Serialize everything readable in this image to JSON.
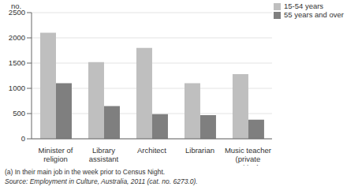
{
  "chart_data": {
    "type": "bar",
    "y_label": "no.",
    "categories": [
      "Minister of religion",
      "Library assistant",
      "Architect",
      "Librarian",
      "Music teacher (private tuition)"
    ],
    "series": [
      {
        "name": "15-54 years",
        "color": "#bfbfbf",
        "values": [
          2100,
          1520,
          1800,
          1100,
          1280
        ]
      },
      {
        "name": "55 years and over",
        "color": "#7f7f7f",
        "values": [
          1100,
          650,
          490,
          470,
          380
        ]
      }
    ],
    "ylim": [
      0,
      2500
    ],
    "yticks": [
      0,
      500,
      1000,
      1500,
      2000,
      2500
    ],
    "grid": true,
    "legend": "upper right",
    "annotations": [
      "(a) In their main job in the week prior to Census Night.",
      "Source: Employment in Culture, Australia, 2011 (cat. no. 6273.0)."
    ]
  }
}
